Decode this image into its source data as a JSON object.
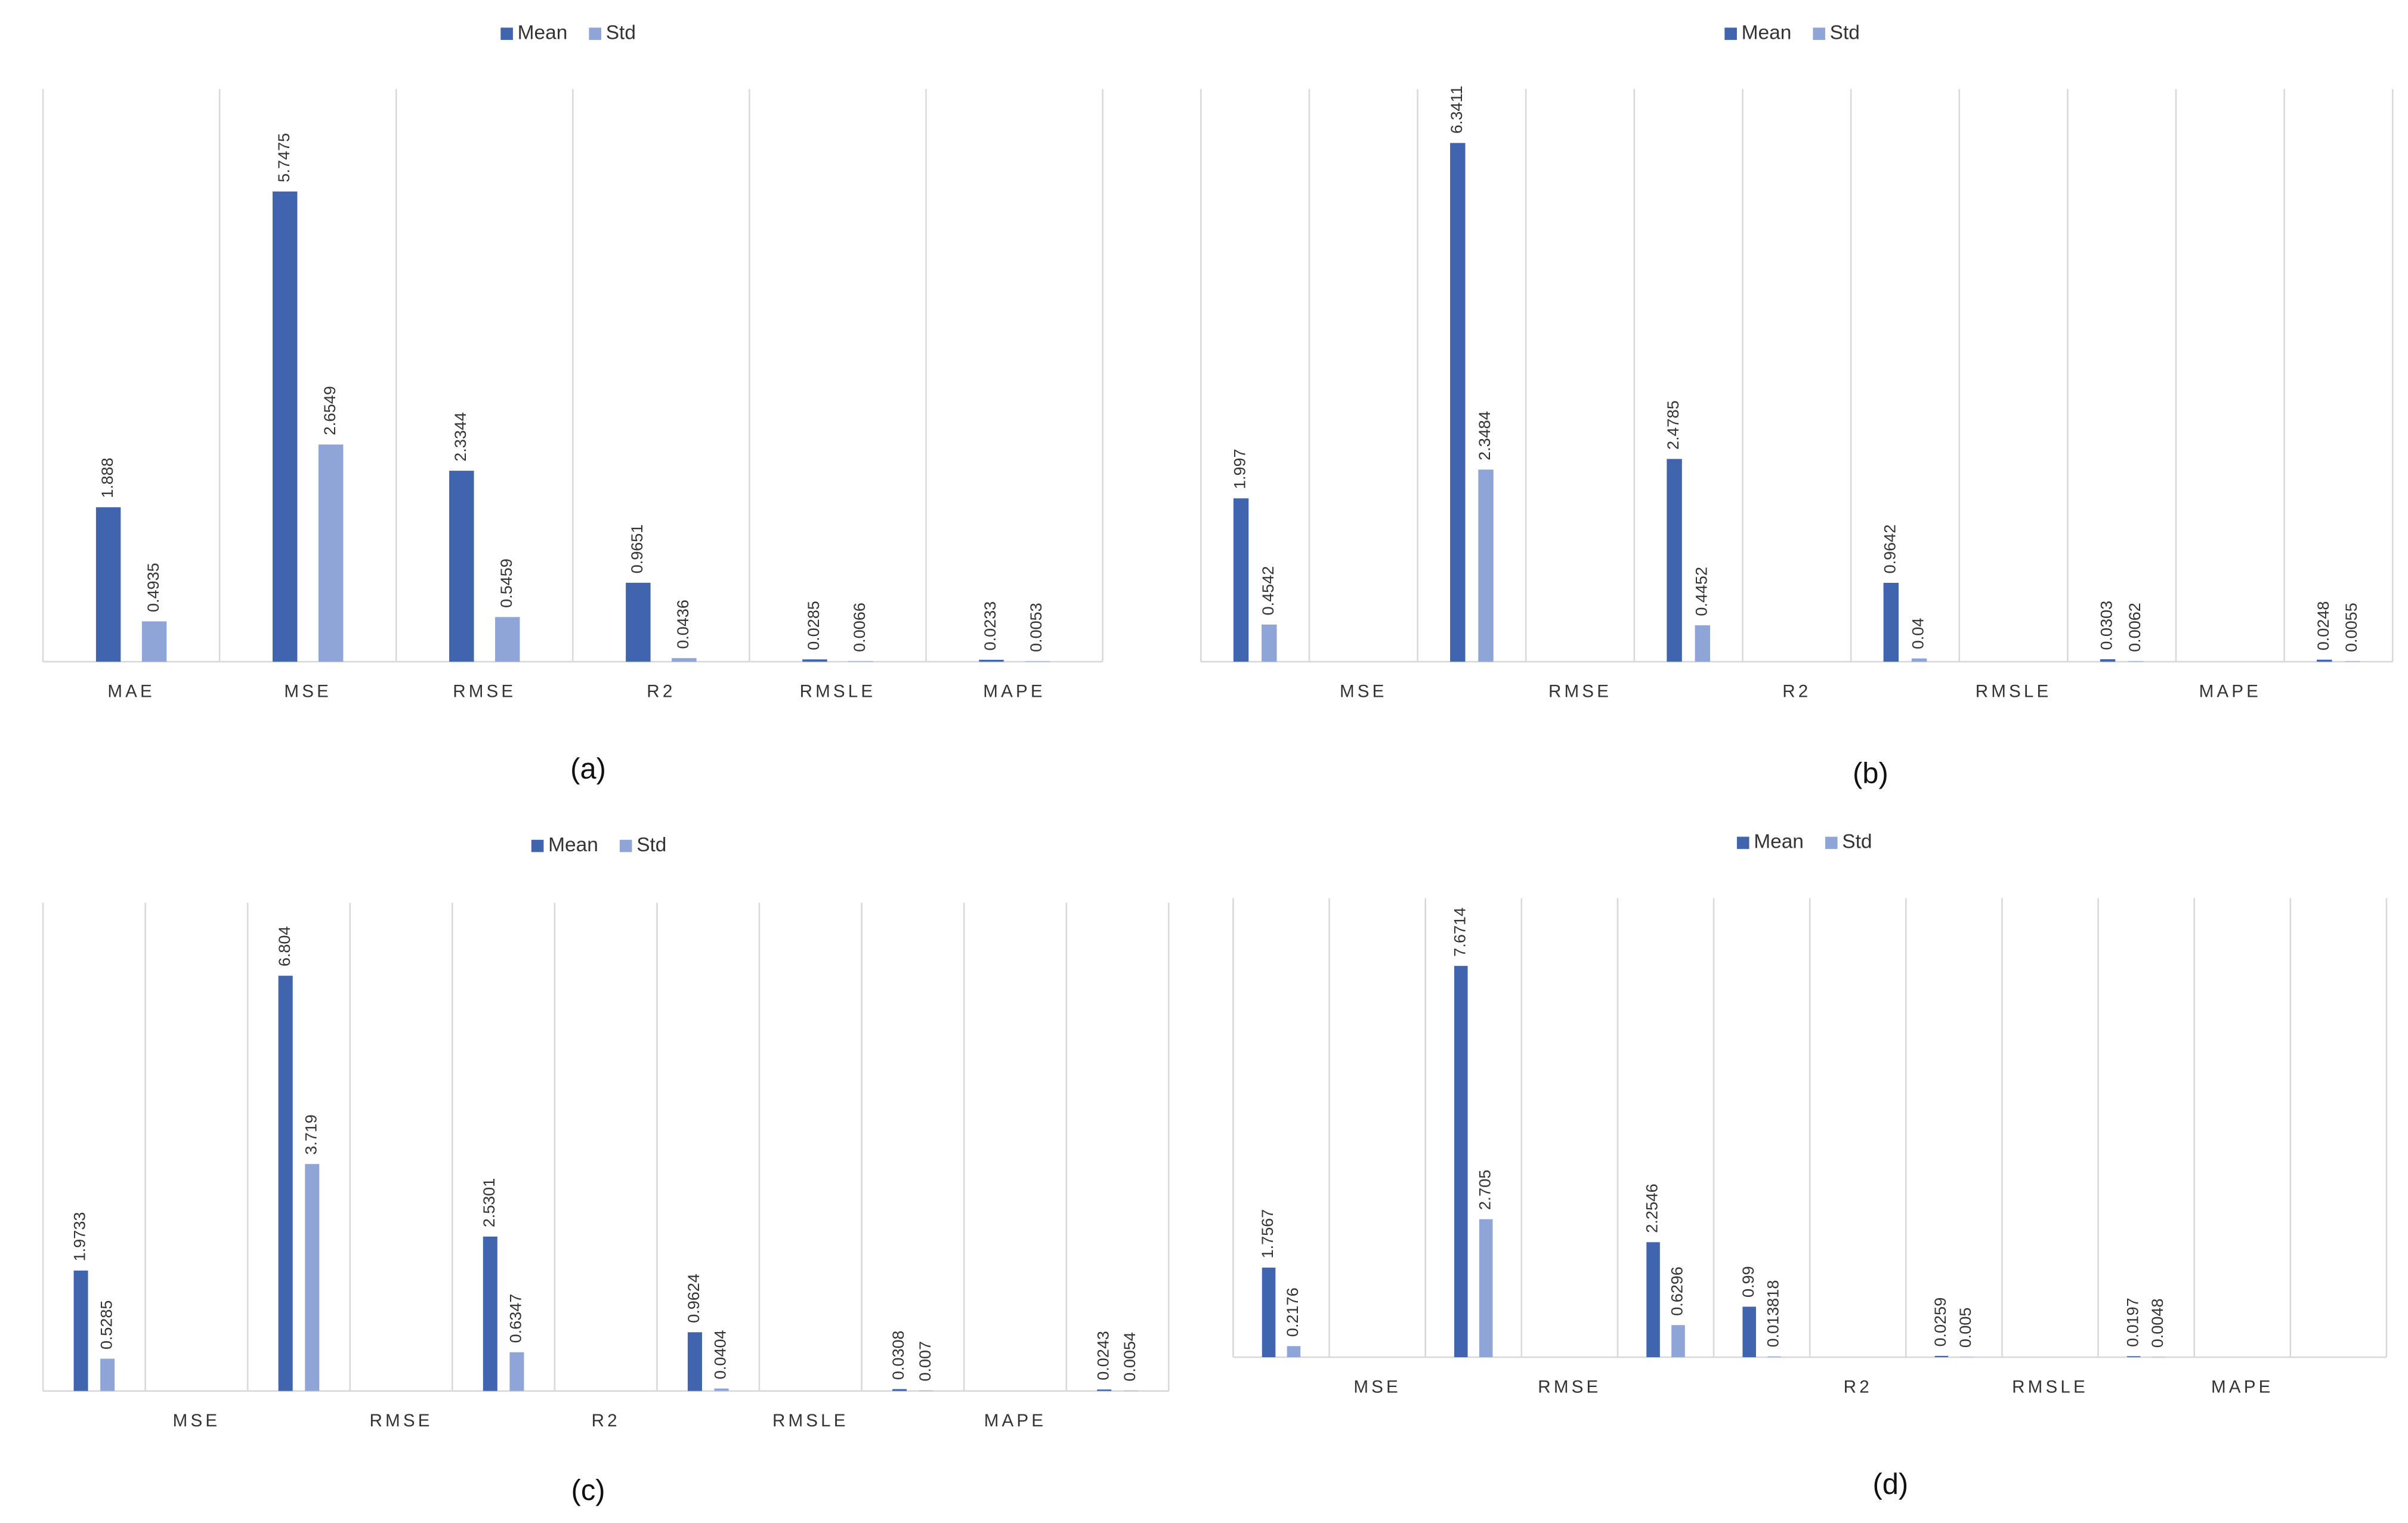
{
  "chart_data": [
    {
      "type": "bar",
      "caption": "(a)",
      "legend": "top",
      "categories": [
        "MAE",
        "MSE",
        "RMSE",
        "R2",
        "RMSLE",
        "MAPE"
      ],
      "series": [
        {
          "name": "Mean",
          "color": "#4064ad",
          "values": [
            1.888,
            5.7475,
            2.3344,
            0.9651,
            0.0285,
            0.0233
          ]
        },
        {
          "name": "Std",
          "color": "#8fa5d8",
          "values": [
            0.4935,
            2.6549,
            0.5459,
            0.0436,
            0.0066,
            0.0053
          ]
        }
      ],
      "ylim": [
        0,
        7
      ]
    },
    {
      "type": "bar",
      "caption": "(b)",
      "legend": "top",
      "categories": [
        null,
        "MSE",
        null,
        "RMSE",
        null,
        "R2",
        null,
        "RMSLE",
        null,
        "MAPE",
        null
      ],
      "series": [
        {
          "name": "Mean",
          "color": "#4064ad",
          "values": [
            1.997,
            null,
            6.3411,
            null,
            2.4785,
            null,
            0.9642,
            null,
            0.0303,
            null,
            0.0248
          ]
        },
        {
          "name": "Std",
          "color": "#8fa5d8",
          "values": [
            0.4542,
            null,
            2.3484,
            null,
            0.4452,
            null,
            0.04,
            null,
            0.0062,
            null,
            0.0055
          ]
        }
      ],
      "ylim": [
        0,
        7
      ]
    },
    {
      "type": "bar",
      "caption": "(c)",
      "legend": "top",
      "categories": [
        null,
        "MSE",
        null,
        "RMSE",
        null,
        "R2",
        null,
        "RMSLE",
        null,
        "MAPE",
        null
      ],
      "series": [
        {
          "name": "Mean",
          "color": "#4064ad",
          "values": [
            1.9733,
            null,
            6.804,
            null,
            2.5301,
            null,
            0.9624,
            null,
            0.0308,
            null,
            0.0243
          ]
        },
        {
          "name": "Std",
          "color": "#8fa5d8",
          "values": [
            0.5285,
            null,
            3.719,
            null,
            0.6347,
            null,
            0.0404,
            null,
            0.007,
            null,
            0.0054
          ]
        }
      ],
      "ylim": [
        0,
        8
      ]
    },
    {
      "type": "bar",
      "caption": "(d)",
      "legend": "top",
      "categories": [
        null,
        "MSE",
        null,
        "RMSE",
        null,
        null,
        "R2",
        null,
        "RMSLE",
        null,
        "MAPE",
        null
      ],
      "series": [
        {
          "name": "Mean",
          "color": "#4064ad",
          "values": [
            1.7567,
            null,
            7.6714,
            null,
            2.2546,
            0.99,
            null,
            0.0259,
            null,
            0.0197,
            null,
            null
          ]
        },
        {
          "name": "Std",
          "color": "#8fa5d8",
          "values": [
            0.2176,
            null,
            2.705,
            null,
            0.6296,
            0.013818,
            null,
            0.005,
            null,
            0.0048,
            null,
            null
          ]
        }
      ],
      "ylim": [
        0,
        9
      ]
    }
  ]
}
